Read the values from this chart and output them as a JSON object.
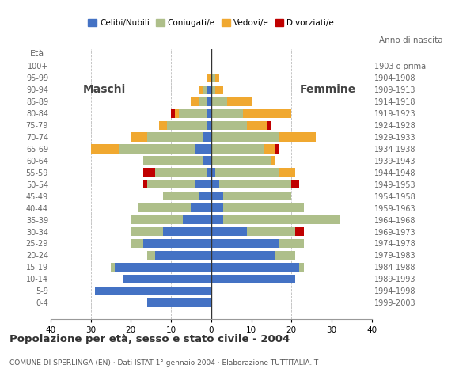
{
  "age_groups": [
    "0-4",
    "5-9",
    "10-14",
    "15-19",
    "20-24",
    "25-29",
    "30-34",
    "35-39",
    "40-44",
    "45-49",
    "50-54",
    "55-59",
    "60-64",
    "65-69",
    "70-74",
    "75-79",
    "80-84",
    "85-89",
    "90-94",
    "95-99",
    "100+"
  ],
  "birth_years": [
    "1999-2003",
    "1994-1998",
    "1989-1993",
    "1984-1988",
    "1979-1983",
    "1974-1978",
    "1969-1973",
    "1964-1968",
    "1959-1963",
    "1954-1958",
    "1949-1953",
    "1944-1948",
    "1939-1943",
    "1934-1938",
    "1929-1933",
    "1924-1928",
    "1919-1923",
    "1914-1918",
    "1909-1913",
    "1904-1908",
    "1903 o prima"
  ],
  "colors": {
    "celibe": "#4472C4",
    "coniugato": "#AEBF8A",
    "vedovo": "#F0A830",
    "divorziato": "#C00000"
  },
  "maschi": {
    "celibe": [
      16,
      29,
      22,
      24,
      14,
      17,
      12,
      7,
      5,
      3,
      4,
      1,
      2,
      4,
      2,
      1,
      1,
      1,
      1,
      0,
      0
    ],
    "coniugato": [
      0,
      0,
      0,
      1,
      2,
      3,
      8,
      13,
      13,
      9,
      12,
      13,
      15,
      19,
      14,
      10,
      7,
      2,
      1,
      0,
      0
    ],
    "vedovo": [
      0,
      0,
      0,
      0,
      0,
      0,
      0,
      0,
      0,
      0,
      0,
      0,
      0,
      7,
      4,
      2,
      1,
      2,
      1,
      1,
      0
    ],
    "divorziato": [
      0,
      0,
      0,
      0,
      0,
      0,
      0,
      0,
      0,
      0,
      1,
      3,
      0,
      0,
      0,
      0,
      1,
      0,
      0,
      0,
      0
    ]
  },
  "femmine": {
    "celibe": [
      0,
      0,
      21,
      22,
      16,
      17,
      9,
      3,
      3,
      3,
      2,
      1,
      0,
      0,
      0,
      0,
      0,
      0,
      0,
      0,
      0
    ],
    "coniugato": [
      0,
      0,
      0,
      1,
      5,
      6,
      12,
      29,
      20,
      17,
      18,
      16,
      15,
      13,
      17,
      9,
      8,
      4,
      1,
      1,
      0
    ],
    "vedovo": [
      0,
      0,
      0,
      0,
      0,
      0,
      0,
      0,
      0,
      0,
      0,
      4,
      1,
      3,
      9,
      5,
      12,
      6,
      2,
      1,
      0
    ],
    "divorziato": [
      0,
      0,
      0,
      0,
      0,
      0,
      2,
      0,
      0,
      0,
      2,
      0,
      0,
      1,
      0,
      1,
      0,
      0,
      0,
      0,
      0
    ]
  },
  "title": "Popolazione per età, sesso e stato civile - 2004",
  "subtitle": "COMUNE DI SPERLINGA (EN) · Dati ISTAT 1° gennaio 2004 · Elaborazione TUTTITALIA.IT",
  "xlabel_left": "Maschi",
  "xlabel_right": "Femmine",
  "ylabel": "Età",
  "ylabel_right": "Anno di nascita",
  "xlim": 40,
  "legend_labels": [
    "Celibi/Nubili",
    "Coniugati/e",
    "Vedovi/e",
    "Divorziati/e"
  ],
  "background_color": "#FFFFFF",
  "grid_color": "#BBBBBB"
}
